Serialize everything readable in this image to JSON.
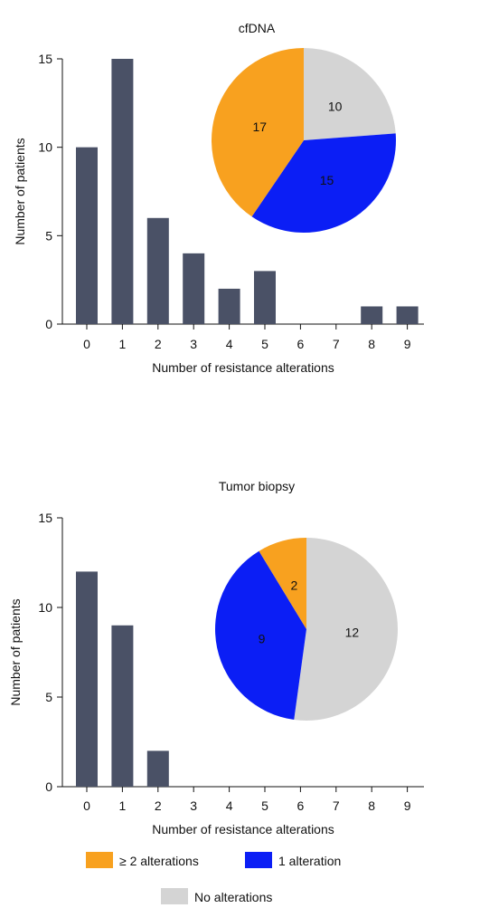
{
  "colors": {
    "bar": "#4a5166",
    "two_plus": "#f8a11f",
    "one": "#0b1ef5",
    "none": "#d4d4d4",
    "axis": "#111111"
  },
  "chart_data": [
    {
      "type": "bar",
      "title": "cfDNA",
      "xlabel": "Number of resistance alterations",
      "ylabel": "Number of patients",
      "categories": [
        "0",
        "1",
        "2",
        "3",
        "4",
        "5",
        "6",
        "7",
        "8",
        "9"
      ],
      "values": [
        10,
        15,
        6,
        4,
        2,
        3,
        0,
        0,
        1,
        1
      ],
      "ylim": [
        0,
        15
      ],
      "yticks": [
        0,
        5,
        10,
        15
      ],
      "inset_pie": {
        "type": "pie",
        "slices": [
          {
            "label": "No alterations",
            "value": 10,
            "color_key": "none"
          },
          {
            "label": "1 alteration",
            "value": 15,
            "color_key": "one"
          },
          {
            "label": "≥ 2 alterations",
            "value": 17,
            "color_key": "two_plus"
          }
        ]
      }
    },
    {
      "type": "bar",
      "title": "Tumor biopsy",
      "xlabel": "Number of resistance alterations",
      "ylabel": "Number of patients",
      "categories": [
        "0",
        "1",
        "2",
        "3",
        "4",
        "5",
        "6",
        "7",
        "8",
        "9"
      ],
      "values": [
        12,
        9,
        2,
        0,
        0,
        0,
        0,
        0,
        0,
        0
      ],
      "ylim": [
        0,
        15
      ],
      "yticks": [
        0,
        5,
        10,
        15
      ],
      "inset_pie": {
        "type": "pie",
        "slices": [
          {
            "label": "No alterations",
            "value": 12,
            "color_key": "none"
          },
          {
            "label": "1 alteration",
            "value": 9,
            "color_key": "one"
          },
          {
            "label": "≥ 2 alterations",
            "value": 2,
            "color_key": "two_plus"
          }
        ]
      }
    }
  ],
  "legend": {
    "items": [
      {
        "label": "≥ 2 alterations",
        "color_key": "two_plus"
      },
      {
        "label": "1 alteration",
        "color_key": "one"
      },
      {
        "label": "No alterations",
        "color_key": "none"
      }
    ]
  }
}
